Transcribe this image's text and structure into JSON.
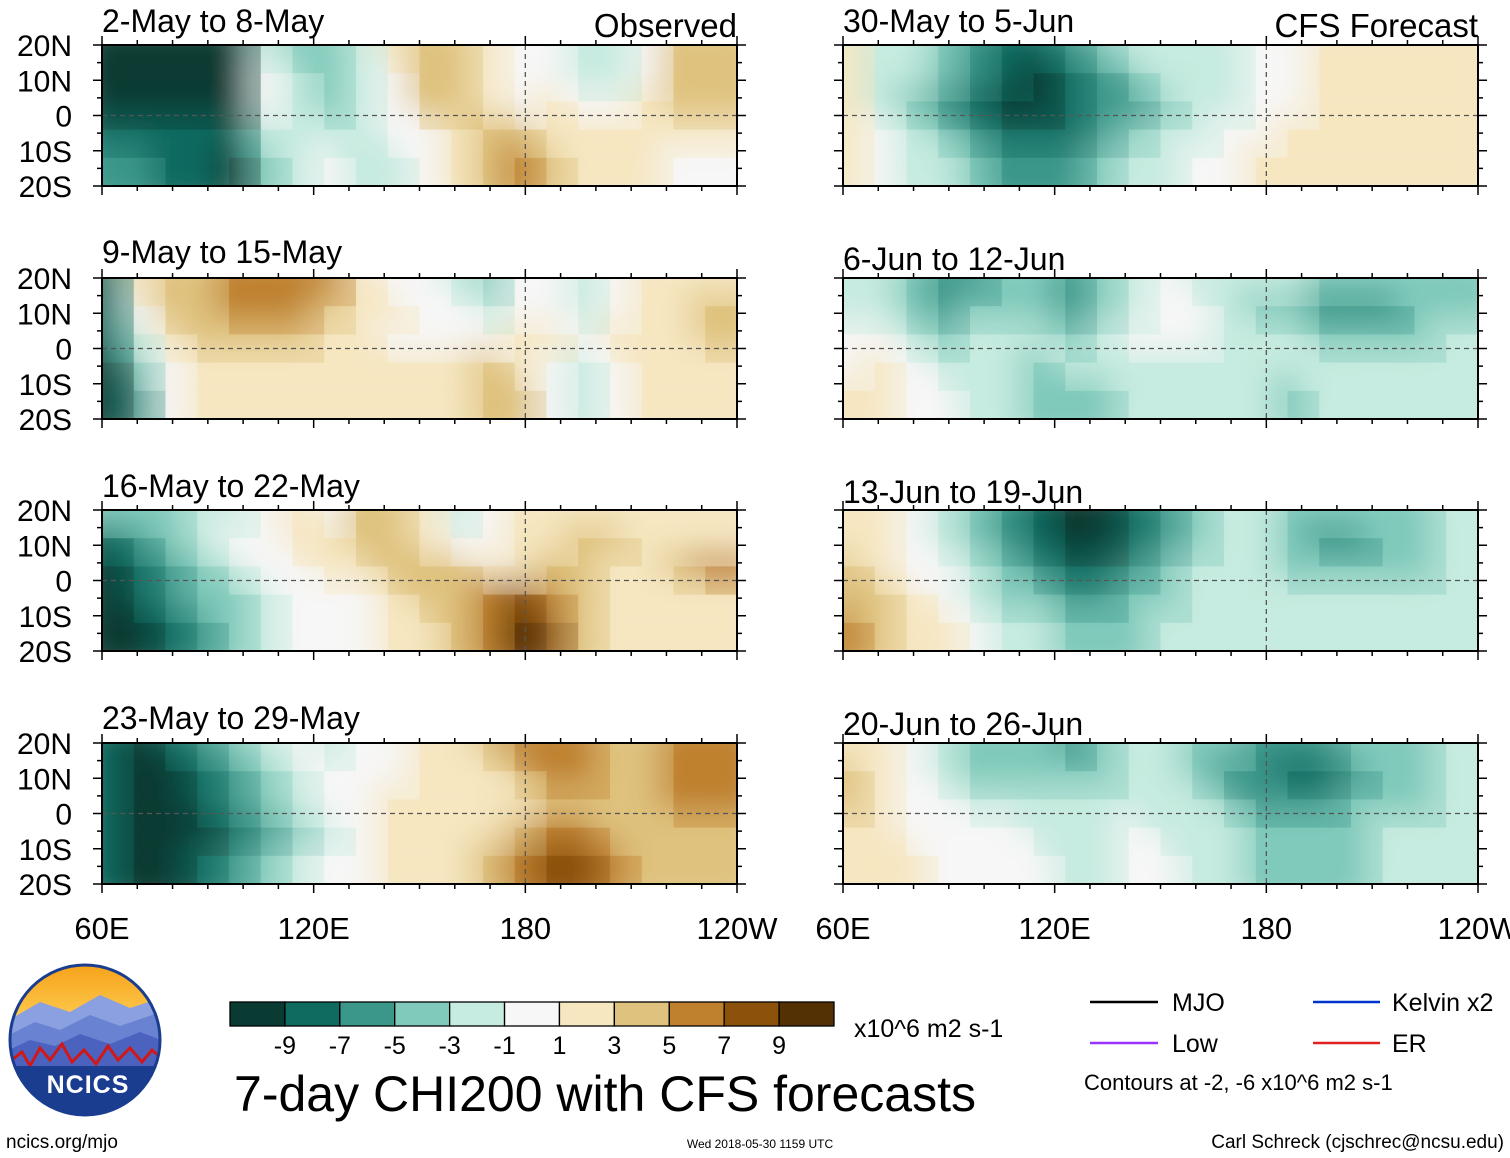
{
  "header": {
    "left_label": "Observed",
    "right_label": "CFS Forecast"
  },
  "chart_data": {
    "type": "heatmap",
    "title": "7-day CHI200 with CFS forecasts",
    "variable": "CHI200",
    "units": "x10^6 m2 s-1",
    "lat_ticks": [
      "20N",
      "10N",
      "0",
      "10S",
      "20S"
    ],
    "lon_ticks": [
      "60E",
      "120E",
      "180",
      "120W"
    ],
    "lat_range": [
      -20,
      20
    ],
    "lon_range": [
      60,
      240
    ],
    "colorbar": {
      "levels": [
        "-9",
        "-7",
        "-5",
        "-3",
        "-1",
        "1",
        "3",
        "5",
        "7",
        "9"
      ],
      "colors": [
        "#0a3b33",
        "#0f6b60",
        "#3a978a",
        "#7fcabb",
        "#c6ebe0",
        "#f7f7f7",
        "#f6e7c1",
        "#dfc27d",
        "#bf812d",
        "#8c510a",
        "#543005"
      ]
    },
    "legend": [
      {
        "name": "MJO",
        "color": "#000000"
      },
      {
        "name": "Kelvin x2",
        "color": "#0033cc"
      },
      {
        "name": "Low",
        "color": "#9933ff"
      },
      {
        "name": "ER",
        "color": "#e02020"
      }
    ],
    "contour_note": "Contours at -2, -6 x10^6 m2 s-1",
    "panels": [
      {
        "title": "2-May to 8-May",
        "side": "observed",
        "cells": [
          [
            0,
            0,
            0,
            0,
            0,
            4,
            3,
            3,
            4,
            6,
            7,
            7,
            6,
            5,
            5,
            4,
            4,
            5,
            7,
            7
          ],
          [
            0,
            0,
            0,
            0,
            0,
            5,
            4,
            3,
            4,
            5,
            7,
            7,
            6,
            5,
            5,
            4,
            4,
            5,
            7,
            7
          ],
          [
            0,
            0,
            0,
            0,
            0,
            5,
            4,
            3,
            4,
            5,
            7,
            7,
            6,
            5,
            6,
            5,
            5,
            6,
            7,
            7
          ],
          [
            1,
            1,
            1,
            1,
            1,
            4,
            4,
            4,
            4,
            5,
            5,
            6,
            7,
            7,
            6,
            6,
            6,
            6,
            6,
            6
          ],
          [
            2,
            2,
            1,
            1,
            0,
            3,
            4,
            5,
            4,
            4,
            5,
            6,
            7,
            8,
            7,
            6,
            6,
            6,
            5,
            5
          ]
        ]
      },
      {
        "title": "30-May to 5-Jun",
        "side": "forecast",
        "cells": [
          [
            6,
            4,
            4,
            3,
            2,
            1,
            1,
            2,
            3,
            4,
            4,
            4,
            4,
            5,
            5,
            6,
            6,
            6,
            6,
            6
          ],
          [
            6,
            4,
            4,
            3,
            2,
            1,
            0,
            1,
            2,
            3,
            4,
            4,
            4,
            5,
            5,
            6,
            6,
            6,
            6,
            6
          ],
          [
            6,
            4,
            3,
            2,
            1,
            0,
            0,
            1,
            2,
            2,
            3,
            4,
            4,
            5,
            5,
            6,
            6,
            6,
            6,
            6
          ],
          [
            6,
            5,
            4,
            3,
            2,
            1,
            1,
            1,
            2,
            3,
            4,
            4,
            5,
            5,
            6,
            6,
            6,
            6,
            6,
            6
          ],
          [
            6,
            5,
            4,
            4,
            3,
            2,
            2,
            2,
            3,
            4,
            4,
            5,
            5,
            6,
            6,
            6,
            6,
            6,
            6,
            6
          ]
        ]
      },
      {
        "title": "9-May to 15-May",
        "side": "observed",
        "cells": [
          [
            1,
            6,
            7,
            7,
            8,
            8,
            8,
            8,
            6,
            5,
            5,
            4,
            3,
            5,
            5,
            4,
            5,
            6,
            6,
            6
          ],
          [
            1,
            5,
            7,
            7,
            8,
            8,
            8,
            7,
            6,
            6,
            5,
            5,
            4,
            5,
            5,
            4,
            5,
            6,
            6,
            7
          ],
          [
            1,
            4,
            6,
            7,
            7,
            7,
            7,
            6,
            6,
            5,
            5,
            5,
            5,
            6,
            6,
            5,
            6,
            6,
            6,
            7
          ],
          [
            0,
            3,
            5,
            6,
            6,
            6,
            6,
            6,
            6,
            6,
            6,
            6,
            7,
            6,
            5,
            4,
            5,
            6,
            6,
            6
          ],
          [
            0,
            2,
            5,
            6,
            6,
            6,
            6,
            6,
            6,
            6,
            6,
            6,
            7,
            7,
            5,
            4,
            5,
            6,
            6,
            6
          ]
        ]
      },
      {
        "title": "6-Jun to 12-Jun",
        "side": "forecast",
        "cells": [
          [
            4,
            4,
            3,
            2,
            2,
            3,
            3,
            2,
            3,
            4,
            5,
            4,
            4,
            4,
            4,
            3,
            3,
            3,
            3,
            3
          ],
          [
            4,
            4,
            3,
            2,
            3,
            3,
            3,
            2,
            3,
            4,
            5,
            5,
            4,
            3,
            3,
            2,
            2,
            2,
            3,
            3
          ],
          [
            5,
            5,
            4,
            3,
            4,
            4,
            4,
            3,
            4,
            5,
            5,
            5,
            4,
            4,
            4,
            3,
            3,
            3,
            3,
            4
          ],
          [
            5,
            6,
            5,
            4,
            4,
            4,
            3,
            4,
            4,
            4,
            4,
            4,
            4,
            4,
            4,
            4,
            4,
            4,
            4,
            4
          ],
          [
            6,
            6,
            5,
            5,
            4,
            4,
            3,
            3,
            3,
            4,
            4,
            4,
            4,
            4,
            3,
            4,
            4,
            4,
            4,
            4
          ]
        ]
      },
      {
        "title": "16-May to 22-May",
        "side": "observed",
        "cells": [
          [
            3,
            3,
            3,
            4,
            4,
            5,
            6,
            5,
            7,
            7,
            6,
            4,
            5,
            6,
            6,
            6,
            6,
            6,
            6,
            6
          ],
          [
            1,
            2,
            3,
            4,
            5,
            5,
            6,
            6,
            7,
            7,
            6,
            5,
            5,
            6,
            6,
            7,
            7,
            6,
            6,
            6
          ],
          [
            0,
            1,
            2,
            3,
            4,
            5,
            5,
            6,
            6,
            7,
            7,
            7,
            6,
            6,
            7,
            7,
            6,
            6,
            7,
            8
          ],
          [
            0,
            1,
            2,
            3,
            3,
            4,
            5,
            5,
            5,
            6,
            7,
            7,
            8,
            9,
            8,
            7,
            6,
            6,
            6,
            6
          ],
          [
            0,
            0,
            1,
            2,
            3,
            4,
            5,
            5,
            5,
            6,
            6,
            7,
            8,
            10,
            9,
            7,
            6,
            6,
            6,
            6
          ]
        ]
      },
      {
        "title": "13-Jun to 19-Jun",
        "side": "forecast",
        "cells": [
          [
            6,
            6,
            5,
            4,
            3,
            2,
            1,
            0,
            0,
            1,
            2,
            3,
            4,
            4,
            3,
            3,
            3,
            3,
            3,
            4
          ],
          [
            6,
            6,
            5,
            4,
            3,
            2,
            1,
            0,
            0,
            1,
            2,
            3,
            4,
            4,
            3,
            2,
            2,
            3,
            3,
            4
          ],
          [
            7,
            6,
            5,
            5,
            4,
            3,
            2,
            1,
            1,
            2,
            3,
            4,
            4,
            4,
            3,
            3,
            3,
            3,
            3,
            4
          ],
          [
            7,
            7,
            6,
            5,
            4,
            3,
            3,
            2,
            2,
            3,
            3,
            4,
            4,
            4,
            4,
            4,
            4,
            4,
            4,
            4
          ],
          [
            8,
            7,
            6,
            6,
            5,
            4,
            4,
            3,
            3,
            3,
            4,
            4,
            4,
            4,
            4,
            4,
            4,
            4,
            4,
            4
          ]
        ]
      },
      {
        "title": "23-May to 29-May",
        "side": "observed",
        "cells": [
          [
            1,
            0,
            1,
            2,
            3,
            4,
            5,
            4,
            5,
            5,
            6,
            6,
            7,
            8,
            8,
            8,
            7,
            7,
            8,
            8
          ],
          [
            1,
            0,
            0,
            1,
            2,
            3,
            4,
            5,
            5,
            5,
            6,
            6,
            6,
            7,
            8,
            8,
            7,
            7,
            8,
            8
          ],
          [
            1,
            0,
            0,
            1,
            2,
            3,
            4,
            5,
            5,
            6,
            6,
            6,
            6,
            6,
            7,
            7,
            7,
            7,
            8,
            8
          ],
          [
            1,
            0,
            0,
            0,
            1,
            2,
            3,
            4,
            5,
            6,
            6,
            6,
            6,
            7,
            8,
            8,
            7,
            7,
            7,
            7
          ],
          [
            1,
            0,
            0,
            1,
            2,
            3,
            4,
            5,
            5,
            6,
            6,
            6,
            7,
            8,
            9,
            9,
            8,
            7,
            7,
            7
          ]
        ]
      },
      {
        "title": "20-Jun to 26-Jun",
        "side": "forecast",
        "cells": [
          [
            6,
            6,
            5,
            4,
            3,
            3,
            3,
            2,
            3,
            4,
            4,
            3,
            3,
            2,
            2,
            2,
            3,
            3,
            3,
            4
          ],
          [
            7,
            6,
            5,
            4,
            3,
            3,
            3,
            3,
            3,
            4,
            4,
            3,
            2,
            2,
            1,
            1,
            2,
            3,
            3,
            4
          ],
          [
            7,
            6,
            5,
            5,
            4,
            4,
            4,
            4,
            4,
            4,
            4,
            4,
            3,
            2,
            2,
            2,
            3,
            3,
            3,
            4
          ],
          [
            6,
            6,
            5,
            5,
            5,
            5,
            4,
            4,
            4,
            5,
            4,
            4,
            4,
            3,
            3,
            3,
            3,
            4,
            4,
            4
          ],
          [
            6,
            6,
            6,
            5,
            5,
            5,
            5,
            4,
            4,
            5,
            5,
            4,
            4,
            3,
            3,
            3,
            3,
            4,
            4,
            4
          ]
        ]
      }
    ]
  },
  "footer": {
    "logo_text": "NCICS",
    "website": "ncics.org/mjo",
    "timestamp": "Wed 2018-05-30 1159 UTC",
    "credit": "Carl Schreck (cjschrec@ncsu.edu)"
  }
}
